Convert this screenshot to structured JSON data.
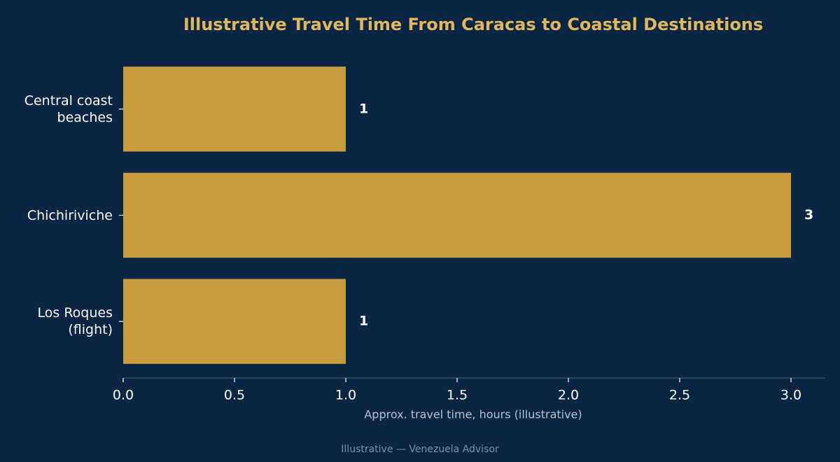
{
  "chart_data": {
    "type": "bar",
    "orientation": "horizontal",
    "title": "Illustrative Travel Time From Caracas to Coastal Destinations",
    "categories": [
      "Central coast\nbeaches",
      "Chichiriviche",
      "Los Roques\n(flight)"
    ],
    "values": [
      1,
      3,
      1
    ],
    "color": "#c89b3c",
    "xlabel": "Approx. travel time, hours (illustrative)",
    "xlim": [
      0,
      3.15
    ],
    "xticks": [
      {
        "value": 0,
        "label": "0.0"
      },
      {
        "value": 0.5,
        "label": "0.5"
      },
      {
        "value": 1,
        "label": "1.0"
      },
      {
        "value": 1.5,
        "label": "1.5"
      },
      {
        "value": 2,
        "label": "2.0"
      },
      {
        "value": 2.5,
        "label": "2.5"
      },
      {
        "value": 3,
        "label": "3.0"
      }
    ],
    "grid": false,
    "footer": "Illustrative — Venezuela Advisor"
  }
}
